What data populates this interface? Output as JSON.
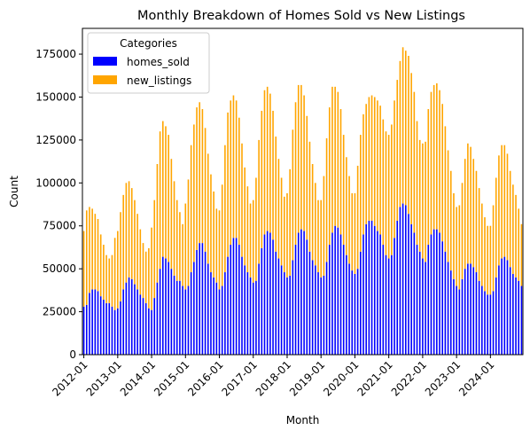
{
  "chart_data": {
    "type": "bar",
    "stacked": true,
    "title": "Monthly Breakdown of Homes Sold vs New Listings",
    "xlabel": "Month",
    "ylabel": "Count",
    "ylim": [
      0,
      190000
    ],
    "yticks": [
      0,
      25000,
      50000,
      75000,
      100000,
      125000,
      150000,
      175000
    ],
    "ytick_labels": [
      "0",
      "25000",
      "50000",
      "75000",
      "100000",
      "125000",
      "150000",
      "175000"
    ],
    "xtick_labels": [
      "2012-01",
      "2013-01",
      "2014-01",
      "2015-01",
      "2016-01",
      "2017-01",
      "2018-01",
      "2019-01",
      "2020-01",
      "2021-01",
      "2022-01",
      "2023-01",
      "2024-01"
    ],
    "start_month": "2012-01",
    "legend": {
      "title": "Categories",
      "placement": "top-left"
    },
    "series": [
      {
        "name": "homes_sold",
        "color": "#0000ff",
        "values": [
          28000,
          29000,
          36000,
          38000,
          38000,
          37000,
          34000,
          32000,
          30000,
          30000,
          28000,
          26000,
          27000,
          31000,
          38000,
          42000,
          45000,
          44000,
          41000,
          38000,
          35000,
          33000,
          30000,
          27000,
          26000,
          33000,
          42000,
          50000,
          57000,
          56000,
          54000,
          50000,
          46000,
          43000,
          43000,
          40000,
          38000,
          40000,
          48000,
          54000,
          61000,
          65000,
          65000,
          60000,
          53000,
          48000,
          45000,
          42000,
          38000,
          40000,
          48000,
          57000,
          64000,
          68000,
          68000,
          64000,
          57000,
          52000,
          48000,
          45000,
          42000,
          43000,
          53000,
          62000,
          70000,
          72000,
          71000,
          67000,
          60000,
          56000,
          52000,
          48000,
          45000,
          46000,
          55000,
          64000,
          71000,
          73000,
          72000,
          67000,
          60000,
          55000,
          52000,
          48000,
          45000,
          46000,
          54000,
          64000,
          71000,
          75000,
          74000,
          70000,
          64000,
          58000,
          53000,
          49000,
          47000,
          50000,
          60000,
          70000,
          76000,
          78000,
          78000,
          75000,
          72000,
          70000,
          64000,
          58000,
          56000,
          58000,
          68000,
          78000,
          86000,
          88000,
          87000,
          82000,
          76000,
          71000,
          64000,
          60000,
          56000,
          54000,
          64000,
          70000,
          73000,
          73000,
          71000,
          66000,
          60000,
          54000,
          49000,
          44000,
          40000,
          38000,
          44000,
          50000,
          53000,
          53000,
          51000,
          48000,
          43000,
          40000,
          37000,
          35000,
          35000,
          37000,
          45000,
          52000,
          56000,
          57000,
          55000,
          51000,
          47000,
          45000,
          43000,
          40000
        ]
      },
      {
        "name": "new_listings",
        "color": "#ffa500",
        "values": [
          44000,
          55000,
          50000,
          47000,
          44000,
          42000,
          36000,
          32000,
          28000,
          26000,
          30000,
          42000,
          45000,
          52000,
          55000,
          58000,
          56000,
          53000,
          49000,
          44000,
          38000,
          32000,
          30000,
          35000,
          48000,
          57000,
          69000,
          80000,
          79000,
          77000,
          74000,
          64000,
          55000,
          47000,
          40000,
          36000,
          50000,
          62000,
          74000,
          80000,
          83000,
          82000,
          78000,
          72000,
          64000,
          57000,
          50000,
          43000,
          46000,
          59000,
          74000,
          84000,
          84000,
          83000,
          80000,
          74000,
          66000,
          57000,
          50000,
          43000,
          48000,
          60000,
          72000,
          80000,
          84000,
          84000,
          81000,
          75000,
          67000,
          58000,
          51000,
          44000,
          49000,
          62000,
          76000,
          83000,
          86000,
          84000,
          79000,
          72000,
          64000,
          56000,
          48000,
          42000,
          45000,
          58000,
          72000,
          80000,
          85000,
          81000,
          79000,
          73000,
          64000,
          57000,
          51000,
          45000,
          47000,
          60000,
          68000,
          70000,
          70000,
          72000,
          73000,
          75000,
          76000,
          75000,
          73000,
          72000,
          72000,
          76000,
          80000,
          82000,
          85000,
          91000,
          90000,
          92000,
          88000,
          82000,
          72000,
          65000,
          67000,
          70000,
          79000,
          83000,
          84000,
          85000,
          83000,
          80000,
          73000,
          65000,
          58000,
          50000,
          46000,
          49000,
          56000,
          64000,
          70000,
          68000,
          63000,
          59000,
          54000,
          48000,
          43000,
          40000,
          40000,
          50000,
          58000,
          64000,
          66000,
          65000,
          62000,
          56000,
          52000,
          48000,
          42000,
          36000
        ]
      }
    ]
  }
}
